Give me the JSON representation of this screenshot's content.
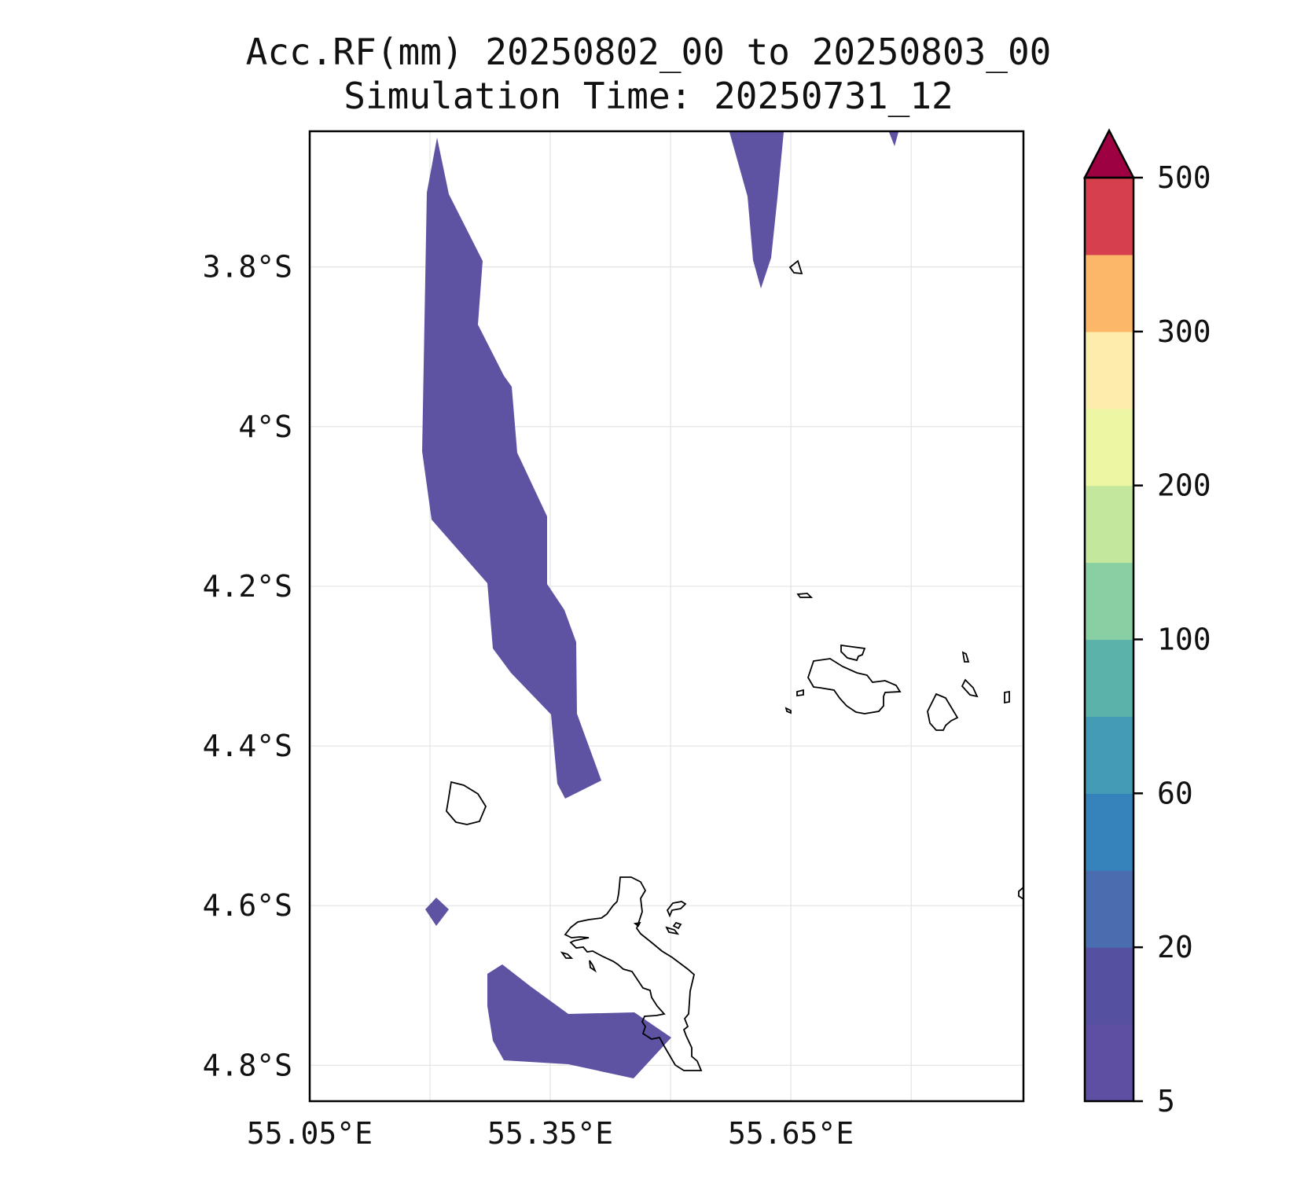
{
  "title": {
    "line1": "Acc.RF(mm) 20250802_00 to 20250803_00",
    "line2": "Simulation Time: 20250731_12"
  },
  "map": {
    "lon_range": [
      55.05,
      55.94
    ],
    "lat_range": [
      -4.845,
      -3.63
    ],
    "lon_ticks": [
      {
        "value": 55.05,
        "label": "55.05°E"
      },
      {
        "value": 55.35,
        "label": "55.35°E"
      },
      {
        "value": 55.65,
        "label": "55.65°E"
      }
    ],
    "lon_grid": [
      55.05,
      55.2,
      55.35,
      55.5,
      55.65,
      55.8
    ],
    "lat_ticks": [
      {
        "value": -3.8,
        "label": "3.8°S"
      },
      {
        "value": -4.0,
        "label": "4°S"
      },
      {
        "value": -4.2,
        "label": "4.2°S"
      },
      {
        "value": -4.4,
        "label": "4.4°S"
      },
      {
        "value": -4.6,
        "label": "4.6°S"
      },
      {
        "value": -4.8,
        "label": "4.8°S"
      }
    ],
    "grid": true,
    "rain_fill_color": "#5e53a3"
  },
  "colorbar": {
    "labels": [
      "5",
      "20",
      "60",
      "100",
      "200",
      "300",
      "500"
    ],
    "colors": [
      "#5e4fa2",
      "#55509f",
      "#4a6db0",
      "#3682ba",
      "#439bb5",
      "#5bb2ab",
      "#88cfa4",
      "#c4e79e",
      "#ecf6a3",
      "#fdedac",
      "#fdb768",
      "#d6404e"
    ],
    "extend_color": "#9e0142",
    "extend": "max"
  }
}
